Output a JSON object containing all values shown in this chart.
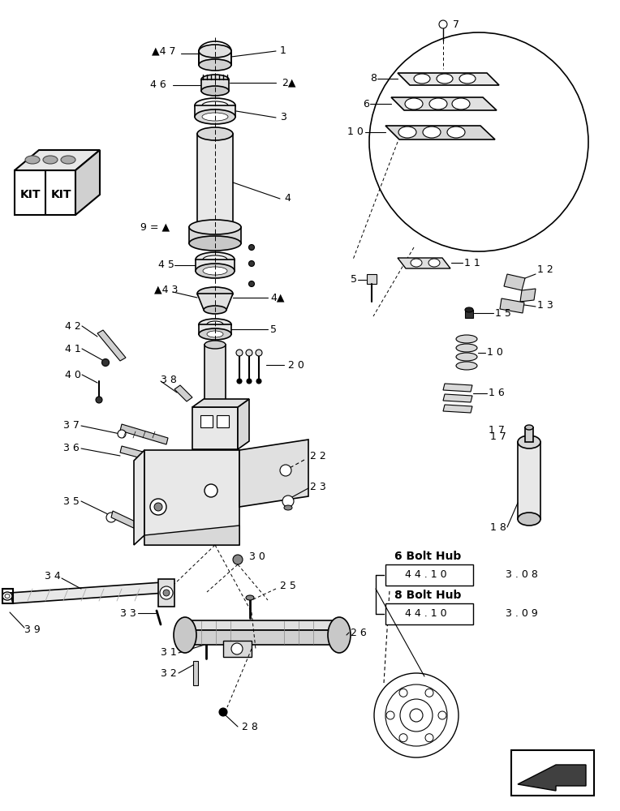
{
  "bg_color": "#ffffff",
  "figsize": [
    7.64,
    10.0
  ],
  "dpi": 100,
  "bolt_hub_6_title": "6 Bolt Hub",
  "bolt_hub_8_title": "8 Bolt Hub",
  "bolt_hub_6_box": "4 4 . 1 0",
  "bolt_hub_6_ext": "3 . 0 8",
  "bolt_hub_8_box": "4 4 . 1 0",
  "bolt_hub_8_ext": "3 . 0 9",
  "kit_text1": "KIT",
  "kit_text2": "KIT",
  "label_9": "9 = ▲"
}
